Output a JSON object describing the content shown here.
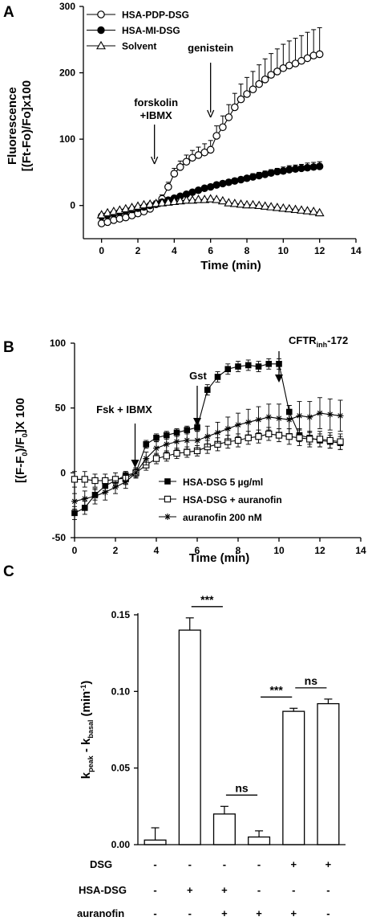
{
  "chart_data": [
    {
      "panel": "A",
      "type": "line",
      "xlabel": "Time (min)",
      "ylabel": [
        "Fluorescence",
        "[(Ft-Fo)/Fo]x100"
      ],
      "xlim": [
        -1,
        14
      ],
      "ylim": [
        -50,
        300
      ],
      "xticks": [
        0,
        2,
        4,
        6,
        8,
        10,
        12,
        14
      ],
      "yticks": [
        0,
        100,
        200,
        300
      ],
      "legend_position": "top-left",
      "grid": false,
      "annotations": [
        {
          "text": [
            "forskolin",
            "+IBMX"
          ],
          "x": 3
        },
        {
          "text": [
            "genistein"
          ],
          "x": 6
        }
      ],
      "series": [
        {
          "name": "HSA-PDP-DSG",
          "marker": "open-circle",
          "x": [
            0,
            0.33,
            0.67,
            1,
            1.33,
            1.67,
            2,
            2.33,
            2.67,
            3,
            3.33,
            3.67,
            4,
            4.33,
            4.67,
            5,
            5.33,
            5.67,
            6,
            6.33,
            6.67,
            7,
            7.33,
            7.67,
            8,
            8.33,
            8.67,
            9,
            9.33,
            9.67,
            10,
            10.33,
            10.67,
            11,
            11.33,
            11.67,
            12
          ],
          "y": [
            -27,
            -25,
            -22,
            -20,
            -18,
            -15,
            -12,
            -9,
            -5,
            2,
            10,
            28,
            48,
            58,
            66,
            72,
            76,
            80,
            84,
            105,
            118,
            133,
            148,
            160,
            168,
            175,
            183,
            190,
            197,
            202,
            207,
            211,
            214,
            218,
            222,
            226,
            228
          ],
          "err": [
            6,
            6,
            5,
            5,
            5,
            5,
            5,
            5,
            5,
            5,
            6,
            7,
            8,
            9,
            10,
            11,
            12,
            13,
            14,
            15,
            17,
            19,
            21,
            23,
            25,
            27,
            29,
            31,
            32,
            34,
            36,
            37,
            38,
            38,
            39,
            39,
            40
          ]
        },
        {
          "name": "HSA-MI-DSG",
          "marker": "filled-circle",
          "x": [
            0,
            0.33,
            0.67,
            1,
            1.33,
            1.67,
            2,
            2.33,
            2.67,
            3,
            3.33,
            3.67,
            4,
            4.33,
            4.67,
            5,
            5.33,
            5.67,
            6,
            6.33,
            6.67,
            7,
            7.33,
            7.67,
            8,
            8.33,
            8.67,
            9,
            9.33,
            9.67,
            10,
            10.33,
            10.67,
            11,
            11.33,
            11.67,
            12
          ],
          "y": [
            -16,
            -14,
            -12,
            -10,
            -8,
            -6,
            -4,
            -2,
            0,
            2,
            5,
            8,
            11,
            14,
            17,
            20,
            23,
            26,
            28,
            31,
            33,
            35,
            37,
            39,
            41,
            43,
            45,
            47,
            49,
            51,
            52,
            54,
            55,
            56,
            57,
            58,
            59
          ],
          "err": [
            3,
            3,
            3,
            3,
            3,
            3,
            3,
            3,
            3,
            3,
            3,
            3,
            3,
            3,
            3,
            3,
            3,
            3,
            3,
            4,
            4,
            4,
            4,
            4,
            4,
            5,
            5,
            5,
            5,
            5,
            6,
            6,
            6,
            6,
            7,
            7,
            7
          ]
        },
        {
          "name": "Solvent",
          "marker": "open-triangle",
          "x": [
            0,
            0.33,
            0.67,
            1,
            1.33,
            1.67,
            2,
            2.33,
            2.67,
            3,
            3.33,
            3.67,
            4,
            4.33,
            4.67,
            5,
            5.33,
            5.67,
            6,
            6.33,
            6.67,
            7,
            7.33,
            7.67,
            8,
            8.33,
            8.67,
            9,
            9.33,
            9.67,
            10,
            10.33,
            10.67,
            11,
            11.33,
            11.67,
            12
          ],
          "y": [
            -14,
            -11,
            -9,
            -7,
            -5,
            -3,
            -1,
            1,
            2,
            3,
            4,
            5,
            6,
            7,
            8,
            8,
            9,
            9,
            10,
            9,
            7,
            4,
            3,
            2,
            1,
            1,
            0,
            -1,
            -2,
            -3,
            -4,
            -5,
            -6,
            -7,
            -8,
            -9,
            -11
          ],
          "err": [
            2,
            2,
            2,
            2,
            2,
            2,
            2,
            2,
            2,
            2,
            2,
            2,
            2,
            2,
            2,
            2,
            2,
            2,
            2,
            2,
            2,
            2,
            2,
            2,
            2,
            2,
            2,
            2,
            2,
            2,
            2,
            2,
            2,
            2,
            2,
            2,
            2
          ]
        }
      ]
    },
    {
      "panel": "B",
      "type": "line",
      "xlabel": "Time (min)",
      "ylabel": "[(F-F0)/F0]X 100",
      "xlim": [
        0,
        14
      ],
      "ylim": [
        -50,
        100
      ],
      "xticks": [
        0,
        2,
        4,
        6,
        8,
        10,
        12,
        14
      ],
      "yticks": [
        -50,
        0,
        50,
        100
      ],
      "legend_position": "bottom-right",
      "grid": false,
      "annotations": [
        {
          "text": "Fsk + IBMX",
          "x": 3
        },
        {
          "text": "Gst",
          "x": 6
        },
        {
          "text": "CFTRinh-172",
          "x": 10
        }
      ],
      "series": [
        {
          "name": "HSA-DSG 5 µg/ml",
          "marker": "filled-square",
          "x": [
            0,
            0.5,
            1,
            1.5,
            2,
            2.5,
            3,
            3.5,
            4,
            4.5,
            5,
            5.5,
            6,
            6.5,
            7,
            7.5,
            8,
            8.5,
            9,
            9.5,
            10,
            10.5,
            11,
            11.5,
            12,
            12.5,
            13
          ],
          "y": [
            -31,
            -27,
            -17,
            -10,
            -6,
            -2,
            0,
            22,
            27,
            29,
            31,
            33,
            35,
            64,
            74,
            80,
            82,
            83,
            82,
            84,
            84,
            47,
            29,
            27,
            25,
            24,
            23
          ],
          "err": [
            5,
            5,
            4,
            4,
            3,
            3,
            3,
            3,
            3,
            3,
            3,
            3,
            3,
            4,
            4,
            4,
            4,
            4,
            4,
            4,
            4,
            5,
            5,
            5,
            5,
            5,
            5
          ]
        },
        {
          "name": "HSA-DSG + auranofin",
          "marker": "open-square",
          "x": [
            0,
            0.5,
            1,
            1.5,
            2,
            2.5,
            3,
            3.5,
            4,
            4.5,
            5,
            5.5,
            6,
            6.5,
            7,
            7.5,
            8,
            8.5,
            9,
            9.5,
            10,
            10.5,
            11,
            11.5,
            12,
            12.5,
            13
          ],
          "y": [
            -5,
            -5,
            -6,
            -6,
            -5,
            -4,
            0,
            6,
            11,
            13,
            15,
            16,
            17,
            20,
            22,
            24,
            25,
            27,
            28,
            30,
            29,
            28,
            27,
            26,
            26,
            25,
            24
          ],
          "err": [
            6,
            6,
            5,
            5,
            5,
            5,
            4,
            4,
            4,
            4,
            4,
            4,
            4,
            5,
            5,
            5,
            5,
            5,
            5,
            5,
            5,
            6,
            6,
            6,
            6,
            6,
            6
          ]
        },
        {
          "name": "auranofin 200 nM",
          "marker": "star",
          "x": [
            0,
            0.5,
            1,
            1.5,
            2,
            2.5,
            3,
            3.5,
            4,
            4.5,
            5,
            5.5,
            6,
            6.5,
            7,
            7.5,
            8,
            8.5,
            9,
            9.5,
            10,
            10.5,
            11,
            11.5,
            12,
            12.5,
            13
          ],
          "y": [
            -22,
            -20,
            -18,
            -15,
            -11,
            -7,
            0,
            11,
            19,
            22,
            24,
            25,
            25,
            28,
            31,
            34,
            37,
            39,
            41,
            43,
            42,
            41,
            44,
            43,
            46,
            45,
            44
          ],
          "err": [
            6,
            6,
            6,
            6,
            5,
            5,
            4,
            5,
            5,
            6,
            6,
            7,
            7,
            8,
            8,
            9,
            9,
            10,
            10,
            10,
            11,
            11,
            11,
            12,
            12,
            12,
            12
          ]
        }
      ]
    },
    {
      "panel": "C",
      "type": "bar",
      "ylabel": "kpeak - kbasal (min-1)",
      "ylim": [
        0,
        0.15
      ],
      "yticks": [
        0.0,
        0.05,
        0.1,
        0.15
      ],
      "values": [
        0.003,
        0.14,
        0.02,
        0.005,
        0.087,
        0.092
      ],
      "err": [
        0.008,
        0.008,
        0.005,
        0.004,
        0.002,
        0.003
      ],
      "condition_rows": [
        {
          "label": "DSG",
          "values": [
            "-",
            "-",
            "-",
            "-",
            "+",
            "+"
          ]
        },
        {
          "label": "HSA-DSG",
          "values": [
            "-",
            "+",
            "+",
            "-",
            "-",
            "-"
          ]
        },
        {
          "label": "auranofin",
          "values": [
            "-",
            "-",
            "+",
            "+",
            "+",
            "-"
          ]
        }
      ],
      "significance": [
        {
          "from": 1,
          "to": 2,
          "label": "***"
        },
        {
          "from": 2,
          "to": 3,
          "label": "ns"
        },
        {
          "from": 3,
          "to": 4,
          "label": "***"
        },
        {
          "from": 4,
          "to": 5,
          "label": "ns"
        }
      ]
    }
  ]
}
